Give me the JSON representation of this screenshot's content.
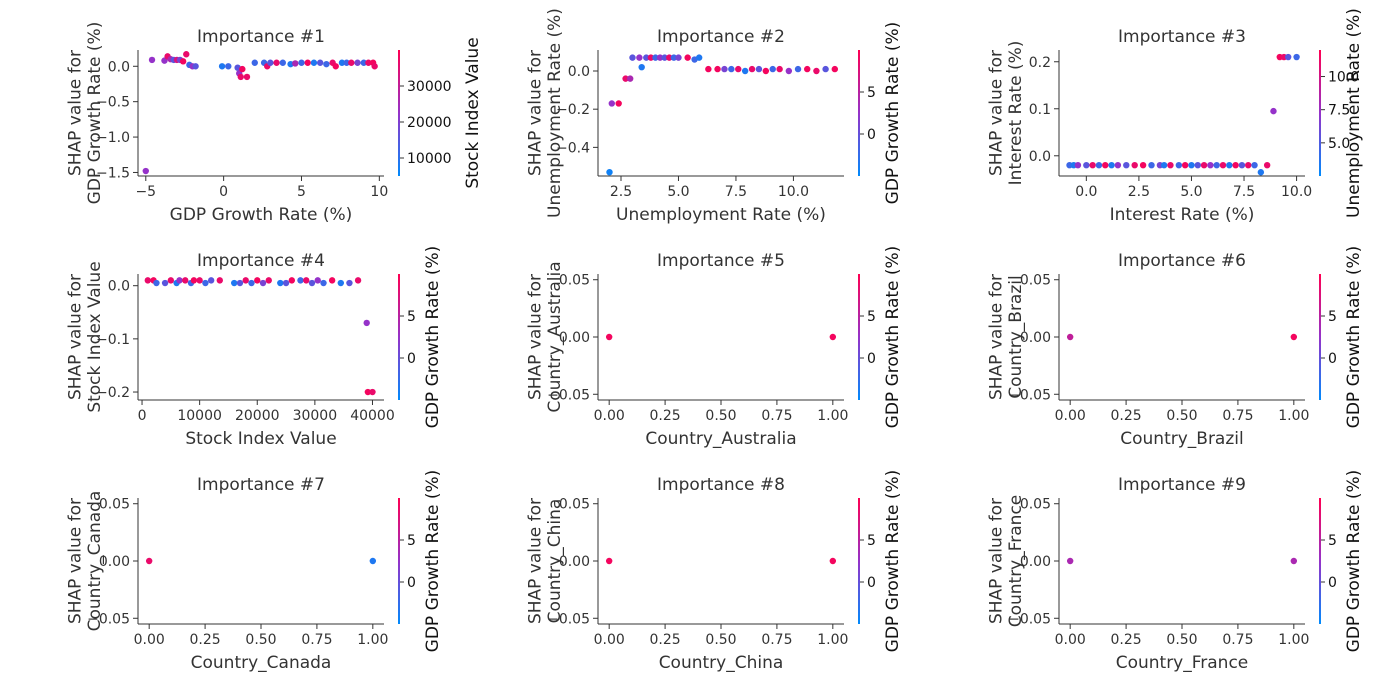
{
  "figure": {
    "colorbar_colors": [
      "#008afb",
      "#9532c9",
      "#ff0052"
    ]
  },
  "chart_data": [
    {
      "type": "scatter",
      "title": "Importance #1",
      "xlabel": "GDP Growth Rate (%)",
      "ylabel": [
        "SHAP value for",
        "GDP Growth Rate (%)"
      ],
      "xlim": [
        -5.5,
        10.3
      ],
      "ylim": [
        -1.55,
        0.23
      ],
      "xticks": [
        -5,
        0,
        5,
        10
      ],
      "xtick_labels": [
        "−5",
        "0",
        "5",
        "10"
      ],
      "yticks": [
        -1.5,
        -1.0,
        -0.5,
        0.0
      ],
      "ytick_labels": [
        "−1.5",
        "−1.0",
        "−0.5",
        "0.0"
      ],
      "colorbar": {
        "label": "Stock Index Value",
        "range": [
          5000,
          40000
        ],
        "ticks": [
          10000,
          20000,
          30000
        ],
        "tick_labels": [
          "10000",
          "20000",
          "30000"
        ]
      },
      "points": [
        [
          -5.0,
          -1.48,
          0.5
        ],
        [
          -4.6,
          0.09,
          0.5
        ],
        [
          -3.8,
          0.08,
          0.5
        ],
        [
          -3.6,
          0.14,
          0.9
        ],
        [
          -3.4,
          0.1,
          0.6
        ],
        [
          -3.2,
          0.09,
          0.3
        ],
        [
          -3.0,
          0.09,
          0.8
        ],
        [
          -2.8,
          0.09,
          0.4
        ],
        [
          -2.6,
          0.07,
          0.95
        ],
        [
          -2.4,
          0.17,
          0.9
        ],
        [
          -2.2,
          0.02,
          0.2
        ],
        [
          -2.0,
          0.0,
          0.5
        ],
        [
          -1.8,
          0.0,
          0.3
        ],
        [
          -0.1,
          0.0,
          0.1
        ],
        [
          0.3,
          0.0,
          0.2
        ],
        [
          0.9,
          -0.02,
          0.3
        ],
        [
          1.0,
          -0.1,
          0.5
        ],
        [
          1.1,
          -0.15,
          0.9
        ],
        [
          1.2,
          -0.04,
          0.95
        ],
        [
          1.5,
          -0.15,
          0.9
        ],
        [
          2.0,
          0.05,
          0.2
        ],
        [
          2.6,
          0.05,
          0.2
        ],
        [
          2.8,
          0.0,
          0.9
        ],
        [
          3.0,
          0.05,
          0.3
        ],
        [
          3.4,
          0.05,
          0.9
        ],
        [
          3.8,
          0.05,
          0.2
        ],
        [
          4.3,
          0.03,
          0.1
        ],
        [
          4.6,
          0.04,
          0.6
        ],
        [
          5.0,
          0.05,
          0.2
        ],
        [
          5.4,
          0.05,
          0.95
        ],
        [
          5.8,
          0.05,
          0.1
        ],
        [
          6.2,
          0.05,
          0.3
        ],
        [
          6.6,
          0.03,
          0.2
        ],
        [
          7.0,
          0.05,
          0.9
        ],
        [
          7.2,
          0.0,
          0.95
        ],
        [
          7.6,
          0.05,
          0.1
        ],
        [
          7.9,
          0.05,
          0.2
        ],
        [
          8.2,
          0.05,
          0.9
        ],
        [
          8.6,
          0.05,
          0.4
        ],
        [
          9.0,
          0.05,
          0.2
        ],
        [
          9.3,
          0.05,
          0.9
        ],
        [
          9.6,
          0.05,
          0.95
        ],
        [
          9.7,
          0.0,
          0.9
        ]
      ]
    },
    {
      "type": "scatter",
      "title": "Importance #2",
      "xlabel": "Unemployment Rate (%)",
      "ylabel": [
        "SHAP value for",
        "Unemployment Rate (%)"
      ],
      "xlim": [
        1.5,
        12.2
      ],
      "ylim": [
        -0.55,
        0.11
      ],
      "xticks": [
        2.5,
        5.0,
        7.5,
        10.0
      ],
      "xtick_labels": [
        "2.5",
        "5.0",
        "7.5",
        "10.0"
      ],
      "yticks": [
        -0.4,
        -0.2,
        0.0
      ],
      "ytick_labels": [
        "−0.4",
        "−0.2",
        "0.0"
      ],
      "colorbar": {
        "label": "GDP Growth Rate (%)",
        "range": [
          -5,
          10
        ],
        "ticks": [
          0,
          5
        ],
        "tick_labels": [
          "0",
          "5"
        ]
      },
      "points": [
        [
          2.0,
          -0.53,
          0.05
        ],
        [
          2.1,
          -0.17,
          0.5
        ],
        [
          2.4,
          -0.17,
          0.95
        ],
        [
          2.7,
          -0.04,
          0.9
        ],
        [
          2.9,
          -0.04,
          0.6
        ],
        [
          3.0,
          0.07,
          0.3
        ],
        [
          3.3,
          0.07,
          0.5
        ],
        [
          3.4,
          0.02,
          0.1
        ],
        [
          3.6,
          0.07,
          0.3
        ],
        [
          3.8,
          0.07,
          0.9
        ],
        [
          4.0,
          0.07,
          0.2
        ],
        [
          4.2,
          0.07,
          0.5
        ],
        [
          4.4,
          0.07,
          0.3
        ],
        [
          4.6,
          0.07,
          0.9
        ],
        [
          4.8,
          0.07,
          0.2
        ],
        [
          5.0,
          0.07,
          0.4
        ],
        [
          5.4,
          0.07,
          0.95
        ],
        [
          5.7,
          0.06,
          0.2
        ],
        [
          5.9,
          0.07,
          0.1
        ],
        [
          6.3,
          0.01,
          0.95
        ],
        [
          6.7,
          0.01,
          0.95
        ],
        [
          7.0,
          0.01,
          0.4
        ],
        [
          7.3,
          0.01,
          0.2
        ],
        [
          7.6,
          0.01,
          0.9
        ],
        [
          7.9,
          0.0,
          0.1
        ],
        [
          8.2,
          0.01,
          0.9
        ],
        [
          8.5,
          0.01,
          0.3
        ],
        [
          8.8,
          0.0,
          0.95
        ],
        [
          9.1,
          0.01,
          0.2
        ],
        [
          9.4,
          0.01,
          0.9
        ],
        [
          9.8,
          0.0,
          0.5
        ],
        [
          10.2,
          0.01,
          0.2
        ],
        [
          10.6,
          0.01,
          0.95
        ],
        [
          11.0,
          0.0,
          0.9
        ],
        [
          11.4,
          0.01,
          0.3
        ],
        [
          11.8,
          0.01,
          0.95
        ]
      ]
    },
    {
      "type": "scatter",
      "title": "Importance #3",
      "xlabel": "Interest Rate (%)",
      "ylabel": [
        "SHAP value for",
        "Interest Rate (%)"
      ],
      "xlim": [
        -1.3,
        10.4
      ],
      "ylim": [
        -0.043,
        0.225
      ],
      "xticks": [
        0.0,
        2.5,
        5.0,
        7.5,
        10.0
      ],
      "xtick_labels": [
        "0.0",
        "2.5",
        "5.0",
        "7.5",
        "10.0"
      ],
      "yticks": [
        0.0,
        0.1,
        0.2
      ],
      "ytick_labels": [
        "0.0",
        "0.1",
        "0.2"
      ],
      "colorbar": {
        "label": "Unemployment Rate (%)",
        "range": [
          2.5,
          12
        ],
        "ticks": [
          5.0,
          7.5,
          10.0
        ],
        "tick_labels": [
          "5.0",
          "7.5",
          "10.0"
        ]
      },
      "points": [
        [
          -0.8,
          -0.02,
          0.2
        ],
        [
          -0.6,
          -0.02,
          0.1
        ],
        [
          -0.4,
          -0.02,
          0.5
        ],
        [
          0.0,
          -0.02,
          0.3
        ],
        [
          0.3,
          -0.02,
          0.9
        ],
        [
          0.6,
          -0.02,
          0.2
        ],
        [
          0.9,
          -0.02,
          0.95
        ],
        [
          1.2,
          -0.02,
          0.1
        ],
        [
          1.5,
          -0.02,
          0.5
        ],
        [
          1.9,
          -0.02,
          0.3
        ],
        [
          2.3,
          -0.02,
          0.9
        ],
        [
          2.7,
          -0.02,
          0.95
        ],
        [
          3.1,
          -0.02,
          0.2
        ],
        [
          3.5,
          -0.02,
          0.4
        ],
        [
          3.7,
          -0.02,
          0.1
        ],
        [
          4.0,
          -0.02,
          0.9
        ],
        [
          4.4,
          -0.02,
          0.2
        ],
        [
          4.7,
          -0.02,
          0.95
        ],
        [
          5.0,
          -0.02,
          0.1
        ],
        [
          5.3,
          -0.02,
          0.3
        ],
        [
          5.6,
          -0.02,
          0.9
        ],
        [
          5.9,
          -0.02,
          0.5
        ],
        [
          6.2,
          -0.02,
          0.2
        ],
        [
          6.5,
          -0.02,
          0.9
        ],
        [
          6.8,
          -0.02,
          0.1
        ],
        [
          7.1,
          -0.02,
          0.95
        ],
        [
          7.4,
          -0.02,
          0.3
        ],
        [
          7.7,
          -0.02,
          0.9
        ],
        [
          8.0,
          -0.02,
          0.2
        ],
        [
          8.3,
          -0.035,
          0.1
        ],
        [
          8.6,
          -0.02,
          0.9
        ],
        [
          8.9,
          0.095,
          0.5
        ],
        [
          9.2,
          0.21,
          0.95
        ],
        [
          9.4,
          0.21,
          0.9
        ],
        [
          9.6,
          0.21,
          0.3
        ],
        [
          10.0,
          0.21,
          0.2
        ]
      ]
    },
    {
      "type": "scatter",
      "title": "Importance #4",
      "xlabel": "Stock Index Value",
      "ylabel": [
        "SHAP value for",
        "Stock Index Value"
      ],
      "xlim": [
        -700,
        42000
      ],
      "ylim": [
        -0.215,
        0.022
      ],
      "xticks": [
        0,
        10000,
        20000,
        30000,
        40000
      ],
      "xtick_labels": [
        "0",
        "10000",
        "20000",
        "30000",
        "40000"
      ],
      "yticks": [
        -0.2,
        -0.1,
        0.0
      ],
      "ytick_labels": [
        "−0.2",
        "−0.1",
        "0.0"
      ],
      "colorbar": {
        "label": "GDP Growth Rate (%)",
        "range": [
          -5,
          10
        ],
        "ticks": [
          0,
          5
        ],
        "tick_labels": [
          "0",
          "5"
        ]
      },
      "points": [
        [
          1000,
          0.01,
          0.9
        ],
        [
          2000,
          0.01,
          0.95
        ],
        [
          2500,
          0.005,
          0.2
        ],
        [
          4000,
          0.005,
          0.3
        ],
        [
          5000,
          0.01,
          0.9
        ],
        [
          6000,
          0.005,
          0.1
        ],
        [
          6500,
          0.01,
          0.5
        ],
        [
          7500,
          0.01,
          0.9
        ],
        [
          8500,
          0.005,
          0.2
        ],
        [
          9000,
          0.01,
          0.95
        ],
        [
          10000,
          0.01,
          0.9
        ],
        [
          11000,
          0.005,
          0.2
        ],
        [
          12000,
          0.01,
          0.3
        ],
        [
          13500,
          0.01,
          0.9
        ],
        [
          16000,
          0.005,
          0.1
        ],
        [
          17000,
          0.005,
          0.3
        ],
        [
          18000,
          0.01,
          0.9
        ],
        [
          19000,
          0.005,
          0.2
        ],
        [
          20000,
          0.01,
          0.95
        ],
        [
          21000,
          0.005,
          0.4
        ],
        [
          22000,
          0.01,
          0.9
        ],
        [
          24000,
          0.005,
          0.1
        ],
        [
          25000,
          0.005,
          0.3
        ],
        [
          26000,
          0.01,
          0.95
        ],
        [
          27500,
          0.01,
          0.2
        ],
        [
          28500,
          0.01,
          0.9
        ],
        [
          29500,
          0.005,
          0.3
        ],
        [
          30500,
          0.01,
          0.5
        ],
        [
          31500,
          0.005,
          0.2
        ],
        [
          33000,
          0.01,
          0.95
        ],
        [
          34500,
          0.005,
          0.1
        ],
        [
          36000,
          0.005,
          0.3
        ],
        [
          37500,
          0.01,
          0.9
        ],
        [
          39000,
          -0.07,
          0.5
        ],
        [
          39200,
          -0.2,
          0.95
        ],
        [
          40000,
          -0.2,
          0.9
        ]
      ]
    },
    {
      "type": "scatter",
      "title": "Importance #5",
      "xlabel": "Country_Australia",
      "ylabel": [
        "SHAP value for",
        "Country_Australia"
      ],
      "xlim": [
        -0.05,
        1.05
      ],
      "ylim": [
        -0.055,
        0.055
      ],
      "xticks": [
        0.0,
        0.25,
        0.5,
        0.75,
        1.0
      ],
      "xtick_labels": [
        "0.00",
        "0.25",
        "0.50",
        "0.75",
        "1.00"
      ],
      "yticks": [
        -0.05,
        0.0,
        0.05
      ],
      "ytick_labels": [
        "−0.05",
        "0.00",
        "0.05"
      ],
      "colorbar": {
        "label": "GDP Growth Rate (%)",
        "range": [
          -5,
          10
        ],
        "ticks": [
          0,
          5
        ],
        "tick_labels": [
          "0",
          "5"
        ]
      },
      "points": [
        [
          0.0,
          0.0,
          0.95
        ],
        [
          1.0,
          0.0,
          0.95
        ]
      ]
    },
    {
      "type": "scatter",
      "title": "Importance #6",
      "xlabel": "Country_Brazil",
      "ylabel": [
        "SHAP value for",
        "Country_Brazil"
      ],
      "xlim": [
        -0.05,
        1.05
      ],
      "ylim": [
        -0.055,
        0.055
      ],
      "xticks": [
        0.0,
        0.25,
        0.5,
        0.75,
        1.0
      ],
      "xtick_labels": [
        "0.00",
        "0.25",
        "0.50",
        "0.75",
        "1.00"
      ],
      "yticks": [
        -0.05,
        0.0,
        0.05
      ],
      "ytick_labels": [
        "−0.05",
        "0.00",
        "0.05"
      ],
      "colorbar": {
        "label": "GDP Growth Rate (%)",
        "range": [
          -5,
          10
        ],
        "ticks": [
          0,
          5
        ],
        "tick_labels": [
          "0",
          "5"
        ]
      },
      "points": [
        [
          0.0,
          0.0,
          0.7
        ],
        [
          1.0,
          0.0,
          0.95
        ]
      ]
    },
    {
      "type": "scatter",
      "title": "Importance #7",
      "xlabel": "Country_Canada",
      "ylabel": [
        "SHAP value for",
        "Country_Canada"
      ],
      "xlim": [
        -0.05,
        1.05
      ],
      "ylim": [
        -0.055,
        0.055
      ],
      "xticks": [
        0.0,
        0.25,
        0.5,
        0.75,
        1.0
      ],
      "xtick_labels": [
        "0.00",
        "0.25",
        "0.50",
        "0.75",
        "1.00"
      ],
      "yticks": [
        -0.05,
        0.0,
        0.05
      ],
      "ytick_labels": [
        "−0.05",
        "0.00",
        "0.05"
      ],
      "colorbar": {
        "label": "GDP Growth Rate (%)",
        "range": [
          -5,
          10
        ],
        "ticks": [
          0,
          5
        ],
        "tick_labels": [
          "0",
          "5"
        ]
      },
      "points": [
        [
          0.0,
          0.0,
          0.9
        ],
        [
          1.0,
          0.0,
          0.1
        ]
      ]
    },
    {
      "type": "scatter",
      "title": "Importance #8",
      "xlabel": "Country_China",
      "ylabel": [
        "SHAP value for",
        "Country_China"
      ],
      "xlim": [
        -0.05,
        1.05
      ],
      "ylim": [
        -0.055,
        0.055
      ],
      "xticks": [
        0.0,
        0.25,
        0.5,
        0.75,
        1.0
      ],
      "xtick_labels": [
        "0.00",
        "0.25",
        "0.50",
        "0.75",
        "1.00"
      ],
      "yticks": [
        -0.05,
        0.0,
        0.05
      ],
      "ytick_labels": [
        "−0.05",
        "0.00",
        "0.05"
      ],
      "colorbar": {
        "label": "GDP Growth Rate (%)",
        "range": [
          -5,
          10
        ],
        "ticks": [
          0,
          5
        ],
        "tick_labels": [
          "0",
          "5"
        ]
      },
      "points": [
        [
          0.0,
          0.0,
          0.95
        ],
        [
          1.0,
          0.0,
          0.95
        ]
      ]
    },
    {
      "type": "scatter",
      "title": "Importance #9",
      "xlabel": "Country_France",
      "ylabel": [
        "SHAP value for",
        "Country_France"
      ],
      "xlim": [
        -0.05,
        1.05
      ],
      "ylim": [
        -0.055,
        0.055
      ],
      "xticks": [
        0.0,
        0.25,
        0.5,
        0.75,
        1.0
      ],
      "xtick_labels": [
        "0.00",
        "0.25",
        "0.50",
        "0.75",
        "1.00"
      ],
      "yticks": [
        -0.05,
        0.0,
        0.05
      ],
      "ytick_labels": [
        "−0.05",
        "0.00",
        "0.05"
      ],
      "colorbar": {
        "label": "GDP Growth Rate (%)",
        "range": [
          -5,
          10
        ],
        "ticks": [
          0,
          5
        ],
        "tick_labels": [
          "0",
          "5"
        ]
      },
      "points": [
        [
          0.0,
          0.0,
          0.6
        ],
        [
          1.0,
          0.0,
          0.6
        ]
      ]
    }
  ]
}
